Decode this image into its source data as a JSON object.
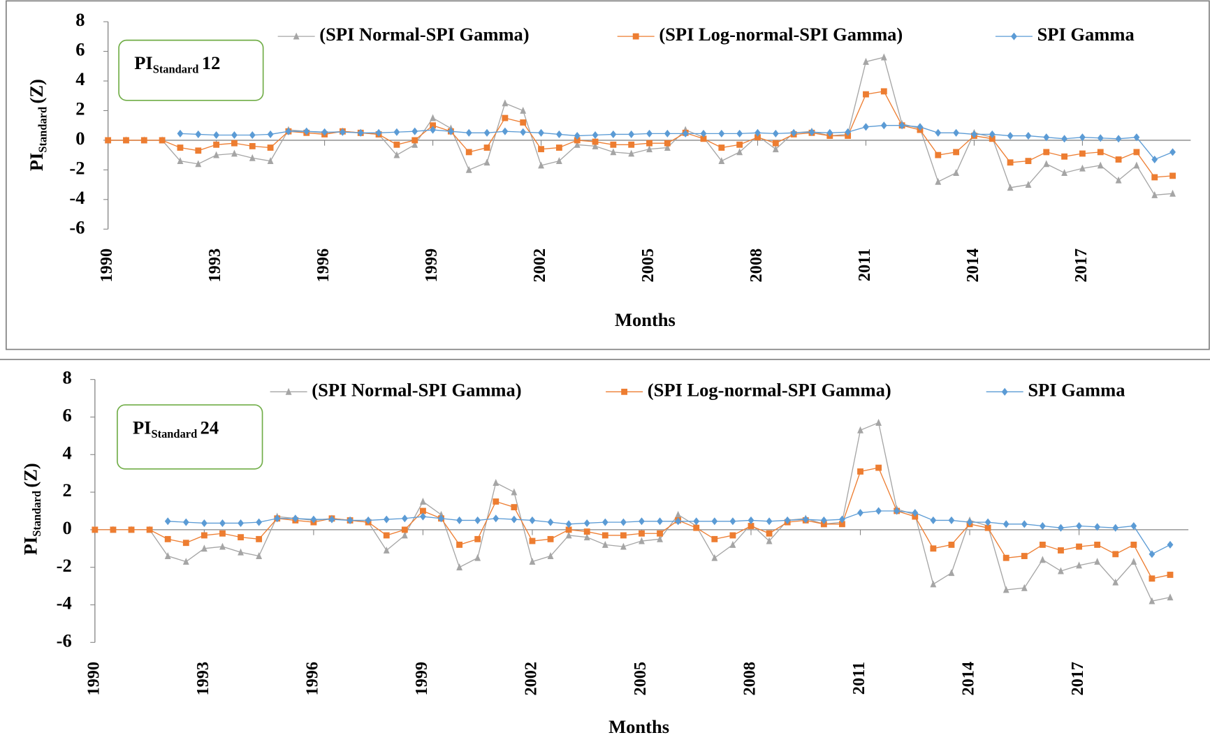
{
  "chart_data": [
    {
      "type": "line",
      "annotation": {
        "main": "PI",
        "sub": "Standard",
        "suffix": "12"
      },
      "y_label": {
        "main": "PI",
        "sub": "Standard",
        "suffix": "(Z)"
      },
      "x_label": "Months",
      "xlim": [
        1990,
        2020
      ],
      "xticks": [
        1990,
        1993,
        1996,
        1999,
        2002,
        2005,
        2008,
        2011,
        2014,
        2017
      ],
      "ylim": [
        -6,
        8
      ],
      "yticks": [
        -6,
        -4,
        -2,
        0,
        2,
        4,
        6,
        8
      ],
      "x": [
        1990,
        1990.5,
        1991,
        1991.5,
        1992,
        1992.5,
        1993,
        1993.5,
        1994,
        1994.5,
        1995,
        1995.5,
        1996,
        1996.5,
        1997,
        1997.5,
        1998,
        1998.5,
        1999,
        1999.5,
        2000,
        2000.5,
        2001,
        2001.5,
        2002,
        2002.5,
        2003,
        2003.5,
        2004,
        2004.5,
        2005,
        2005.5,
        2006,
        2006.5,
        2007,
        2007.5,
        2008,
        2008.5,
        2009,
        2009.5,
        2010,
        2010.5,
        2011,
        2011.5,
        2012,
        2012.5,
        2013,
        2013.5,
        2014,
        2014.5,
        2015,
        2015.5,
        2016,
        2016.5,
        2017,
        2017.5,
        2018,
        2018.5,
        2019,
        2019.5
      ],
      "series": [
        {
          "name": "(SPI Normal-SPI Gamma)",
          "color": "#a5a5a5",
          "marker": "triangle",
          "values": [
            0,
            0,
            0,
            0,
            -1.4,
            -1.6,
            -1.0,
            -0.9,
            -1.2,
            -1.4,
            0.7,
            0.6,
            0.5,
            0.6,
            0.5,
            0.4,
            -1.0,
            -0.3,
            1.5,
            0.8,
            -2.0,
            -1.5,
            2.5,
            2.0,
            -1.7,
            -1.4,
            -0.3,
            -0.4,
            -0.8,
            -0.9,
            -0.6,
            -0.5,
            0.7,
            0.2,
            -1.4,
            -0.8,
            0.3,
            -0.6,
            0.5,
            0.6,
            0.3,
            0.4,
            5.3,
            5.6,
            1.1,
            0.8,
            -2.8,
            -2.2,
            0.5,
            0.2,
            -3.2,
            -3.0,
            -1.6,
            -2.2,
            -1.9,
            -1.7,
            -2.7,
            -1.7,
            -3.7,
            -3.6
          ]
        },
        {
          "name": "(SPI Log-normal-SPI Gamma)",
          "color": "#ed7d31",
          "marker": "square",
          "values": [
            0,
            0,
            0,
            0,
            -0.5,
            -0.7,
            -0.3,
            -0.2,
            -0.4,
            -0.5,
            0.6,
            0.5,
            0.4,
            0.6,
            0.5,
            0.4,
            -0.3,
            0.0,
            1.0,
            0.6,
            -0.8,
            -0.5,
            1.5,
            1.2,
            -0.6,
            -0.5,
            0.0,
            -0.1,
            -0.3,
            -0.3,
            -0.2,
            -0.2,
            0.5,
            0.1,
            -0.5,
            -0.3,
            0.2,
            -0.2,
            0.4,
            0.5,
            0.3,
            0.3,
            3.1,
            3.3,
            1.0,
            0.7,
            -1.0,
            -0.8,
            0.3,
            0.1,
            -1.5,
            -1.4,
            -0.8,
            -1.1,
            -0.9,
            -0.8,
            -1.3,
            -0.8,
            -2.5,
            -2.4
          ]
        },
        {
          "name": "SPI Gamma",
          "color": "#5b9bd5",
          "marker": "diamond",
          "values": [
            null,
            null,
            null,
            null,
            0.45,
            0.4,
            0.35,
            0.35,
            0.35,
            0.4,
            0.6,
            0.6,
            0.55,
            0.55,
            0.5,
            0.5,
            0.55,
            0.6,
            0.7,
            0.6,
            0.5,
            0.5,
            0.6,
            0.55,
            0.5,
            0.4,
            0.3,
            0.35,
            0.4,
            0.4,
            0.45,
            0.45,
            0.45,
            0.45,
            0.45,
            0.45,
            0.5,
            0.45,
            0.5,
            0.55,
            0.5,
            0.55,
            0.9,
            1.0,
            1.0,
            0.9,
            0.5,
            0.5,
            0.4,
            0.4,
            0.3,
            0.3,
            0.2,
            0.1,
            0.2,
            0.15,
            0.1,
            0.2,
            -1.3,
            -0.8
          ]
        }
      ]
    },
    {
      "type": "line",
      "annotation": {
        "main": "PI",
        "sub": "Standard",
        "suffix": "24"
      },
      "y_label": {
        "main": "PI",
        "sub": "Standard",
        "suffix": "(Z)"
      },
      "x_label": "Months",
      "xlim": [
        1990,
        2020
      ],
      "xticks": [
        1990,
        1993,
        1996,
        1999,
        2002,
        2005,
        2008,
        2011,
        2014,
        2017
      ],
      "ylim": [
        -6,
        8
      ],
      "yticks": [
        -6,
        -4,
        -2,
        0,
        2,
        4,
        6,
        8
      ],
      "x": [
        1990,
        1990.5,
        1991,
        1991.5,
        1992,
        1992.5,
        1993,
        1993.5,
        1994,
        1994.5,
        1995,
        1995.5,
        1996,
        1996.5,
        1997,
        1997.5,
        1998,
        1998.5,
        1999,
        1999.5,
        2000,
        2000.5,
        2001,
        2001.5,
        2002,
        2002.5,
        2003,
        2003.5,
        2004,
        2004.5,
        2005,
        2005.5,
        2006,
        2006.5,
        2007,
        2007.5,
        2008,
        2008.5,
        2009,
        2009.5,
        2010,
        2010.5,
        2011,
        2011.5,
        2012,
        2012.5,
        2013,
        2013.5,
        2014,
        2014.5,
        2015,
        2015.5,
        2016,
        2016.5,
        2017,
        2017.5,
        2018,
        2018.5,
        2019,
        2019.5
      ],
      "series": [
        {
          "name": "(SPI Normal-SPI Gamma)",
          "color": "#a5a5a5",
          "marker": "triangle",
          "values": [
            0,
            0,
            0,
            0,
            -1.4,
            -1.7,
            -1.0,
            -0.9,
            -1.2,
            -1.4,
            0.7,
            0.6,
            0.5,
            0.6,
            0.5,
            0.4,
            -1.1,
            -0.3,
            1.5,
            0.8,
            -2.0,
            -1.5,
            2.5,
            2.0,
            -1.7,
            -1.4,
            -0.3,
            -0.4,
            -0.8,
            -0.9,
            -0.6,
            -0.5,
            0.8,
            0.2,
            -1.5,
            -0.8,
            0.3,
            -0.6,
            0.5,
            0.6,
            0.3,
            0.4,
            5.3,
            5.7,
            1.1,
            0.8,
            -2.9,
            -2.3,
            0.5,
            0.2,
            -3.2,
            -3.1,
            -1.6,
            -2.2,
            -1.9,
            -1.7,
            -2.8,
            -1.7,
            -3.8,
            -3.6
          ]
        },
        {
          "name": "(SPI Log-normal-SPI Gamma)",
          "color": "#ed7d31",
          "marker": "square",
          "values": [
            0,
            0,
            0,
            0,
            -0.5,
            -0.7,
            -0.3,
            -0.2,
            -0.4,
            -0.5,
            0.6,
            0.5,
            0.4,
            0.6,
            0.5,
            0.4,
            -0.3,
            0.0,
            1.0,
            0.6,
            -0.8,
            -0.5,
            1.5,
            1.2,
            -0.6,
            -0.5,
            0.0,
            -0.1,
            -0.3,
            -0.3,
            -0.2,
            -0.2,
            0.5,
            0.1,
            -0.5,
            -0.3,
            0.2,
            -0.2,
            0.4,
            0.5,
            0.3,
            0.3,
            3.1,
            3.3,
            1.0,
            0.7,
            -1.0,
            -0.8,
            0.3,
            0.1,
            -1.5,
            -1.4,
            -0.8,
            -1.1,
            -0.9,
            -0.8,
            -1.3,
            -0.8,
            -2.6,
            -2.4
          ]
        },
        {
          "name": "SPI Gamma",
          "color": "#5b9bd5",
          "marker": "diamond",
          "values": [
            null,
            null,
            null,
            null,
            0.45,
            0.4,
            0.35,
            0.35,
            0.35,
            0.4,
            0.6,
            0.6,
            0.55,
            0.55,
            0.5,
            0.5,
            0.55,
            0.6,
            0.7,
            0.6,
            0.5,
            0.5,
            0.6,
            0.55,
            0.5,
            0.4,
            0.3,
            0.35,
            0.4,
            0.4,
            0.45,
            0.45,
            0.45,
            0.45,
            0.45,
            0.45,
            0.5,
            0.45,
            0.5,
            0.55,
            0.5,
            0.55,
            0.9,
            1.0,
            1.0,
            0.9,
            0.5,
            0.5,
            0.4,
            0.4,
            0.3,
            0.3,
            0.2,
            0.1,
            0.2,
            0.15,
            0.1,
            0.2,
            -1.3,
            -0.8
          ]
        }
      ]
    }
  ]
}
